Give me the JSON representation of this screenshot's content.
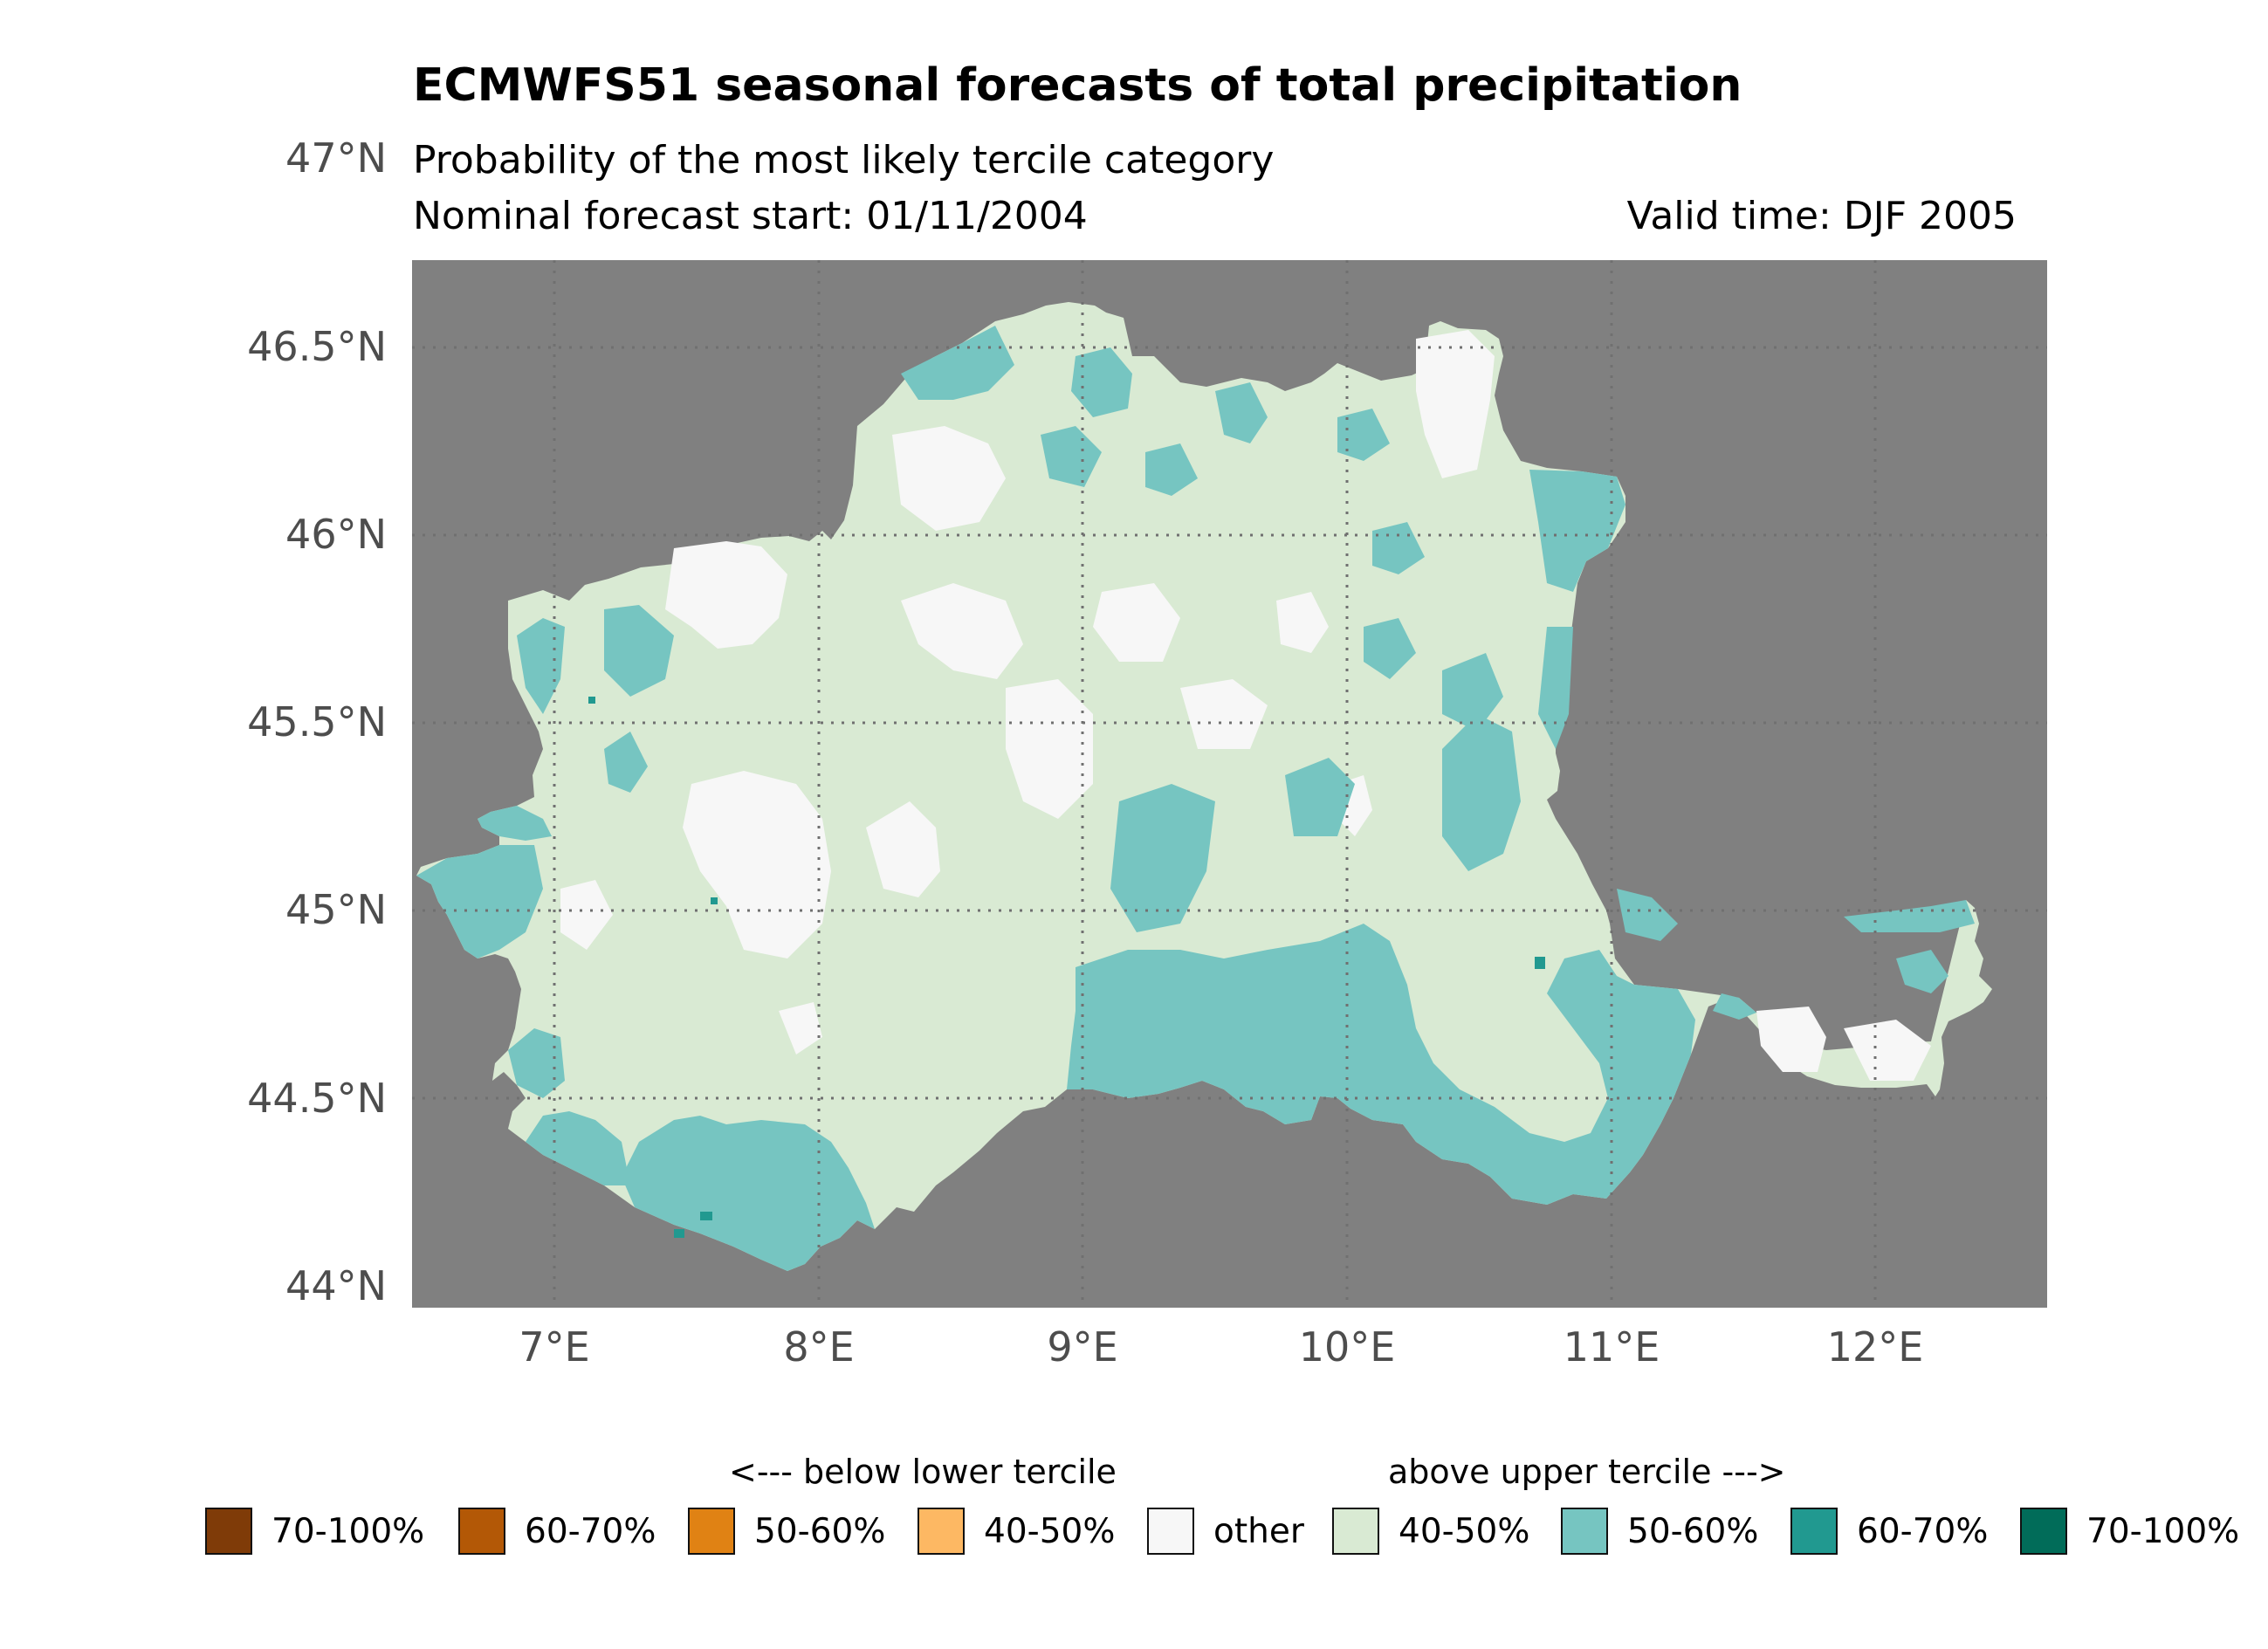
{
  "header": {
    "title": "ECMWFS51 seasonal forecasts of total precipitation",
    "subtitle": "Probability of the most likely tercile category",
    "forecast_start": "Nominal forecast start: 01/11/2004",
    "valid_time": "Valid time: DJF 2005"
  },
  "axes": {
    "y_ticks": [
      "47°N",
      "46.5°N",
      "46°N",
      "45.5°N",
      "45°N",
      "44.5°N",
      "44°N"
    ],
    "x_ticks": [
      "7°E",
      "8°E",
      "9°E",
      "10°E",
      "11°E",
      "12°E"
    ]
  },
  "legend": {
    "below_label": "<--- below lower tercile",
    "above_label": "above upper tercile --->",
    "items": [
      {
        "label": "70-100%",
        "color": "#7f3b08"
      },
      {
        "label": "60-70%",
        "color": "#b35806"
      },
      {
        "label": "50-60%",
        "color": "#e08214"
      },
      {
        "label": "40-50%",
        "color": "#fdb863"
      },
      {
        "label": "other",
        "color": "#f7f7f7"
      },
      {
        "label": "40-50%",
        "color": "#d9ead3"
      },
      {
        "label": "50-60%",
        "color": "#76c5c1"
      },
      {
        "label": "60-70%",
        "color": "#219990"
      },
      {
        "label": "70-100%",
        "color": "#016c59"
      }
    ]
  },
  "colors": {
    "background": "#808080",
    "land_base": "#d9ead3",
    "other": "#f7f7f7",
    "above_50_60": "#76c5c1",
    "above_70_100": "#016c59"
  }
}
